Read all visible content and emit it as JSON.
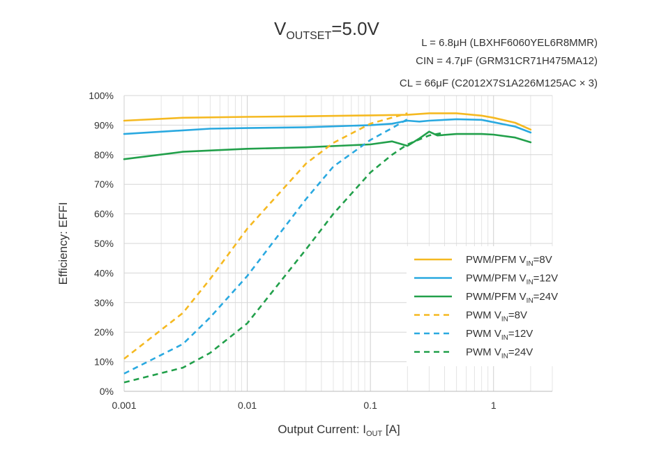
{
  "chart_data": {
    "type": "line",
    "title": {
      "prefix": "V",
      "sub": "OUTSET",
      "suffix": "=5.0V"
    },
    "conditions": [
      "L = 6.8μH (LBXHF6060YEL6R8MMR)",
      "CIN = 4.7μF (GRM31CR71H475MA12)",
      "CL = 66μF (C2012X7S1A226M125AC × 3)"
    ],
    "xlabel": {
      "main": "Output Current: I",
      "sub": "OUT",
      "tail": " [A]"
    },
    "ylabel": "Efficiency: EFFI",
    "xscale": "log",
    "xlim": [
      0.001,
      3
    ],
    "ylim": [
      0,
      100
    ],
    "x_ticks": [
      {
        "value": 0.001,
        "label": "0.001"
      },
      {
        "value": 0.01,
        "label": "0.01"
      },
      {
        "value": 0.1,
        "label": "0.1"
      },
      {
        "value": 1,
        "label": "1"
      }
    ],
    "y_ticks": [
      {
        "value": 0,
        "label": "0%"
      },
      {
        "value": 10,
        "label": "10%"
      },
      {
        "value": 20,
        "label": "20%"
      },
      {
        "value": 30,
        "label": "30%"
      },
      {
        "value": 40,
        "label": "40%"
      },
      {
        "value": 50,
        "label": "50%"
      },
      {
        "value": 60,
        "label": "60%"
      },
      {
        "value": 70,
        "label": "70%"
      },
      {
        "value": 80,
        "label": "80%"
      },
      {
        "value": 90,
        "label": "90%"
      },
      {
        "value": 100,
        "label": "100%"
      }
    ],
    "legend_position": "bottom-right",
    "series": [
      {
        "name": "PWM/PFM VIN=8V",
        "legend": {
          "pre": "PWM/PFM V",
          "sub": "IN",
          "post": "=8V"
        },
        "color": "#F5B921",
        "dash": "solid",
        "x": [
          0.001,
          0.003,
          0.01,
          0.03,
          0.1,
          0.2,
          0.3,
          0.5,
          0.8,
          1.0,
          1.5,
          2.0
        ],
        "y": [
          91.5,
          92.5,
          92.8,
          93.0,
          93.3,
          93.5,
          94.0,
          94.0,
          93.2,
          92.5,
          90.8,
          88.5
        ]
      },
      {
        "name": "PWM/PFM VIN=12V",
        "legend": {
          "pre": "PWM/PFM V",
          "sub": "IN",
          "post": "=12V"
        },
        "color": "#2AA9E0",
        "dash": "solid",
        "x": [
          0.001,
          0.005,
          0.01,
          0.03,
          0.1,
          0.15,
          0.2,
          0.25,
          0.3,
          0.5,
          0.8,
          1.0,
          1.5,
          2.0
        ],
        "y": [
          87.0,
          88.8,
          89.0,
          89.3,
          90.0,
          90.5,
          91.5,
          91.2,
          91.5,
          92.0,
          91.8,
          91.0,
          89.5,
          87.5
        ]
      },
      {
        "name": "PWM/PFM VIN=24V",
        "legend": {
          "pre": "PWM/PFM V",
          "sub": "IN",
          "post": "=24V"
        },
        "color": "#22A04B",
        "dash": "solid",
        "x": [
          0.001,
          0.003,
          0.01,
          0.03,
          0.1,
          0.15,
          0.2,
          0.25,
          0.3,
          0.35,
          0.5,
          0.8,
          1.0,
          1.5,
          2.0
        ],
        "y": [
          78.5,
          81.0,
          82.0,
          82.5,
          83.5,
          84.5,
          83.0,
          85.5,
          87.8,
          86.5,
          87.0,
          87.0,
          86.8,
          85.8,
          84.2
        ]
      },
      {
        "name": "PWM VIN=8V",
        "legend": {
          "pre": "PWM V",
          "sub": "IN",
          "post": "=8V"
        },
        "color": "#F5B921",
        "dash": "dashed",
        "x": [
          0.001,
          0.003,
          0.005,
          0.01,
          0.03,
          0.05,
          0.1,
          0.2
        ],
        "y": [
          11.0,
          26.5,
          38.0,
          55.0,
          77.0,
          84.0,
          90.5,
          94.0
        ]
      },
      {
        "name": "PWM VIN=12V",
        "legend": {
          "pre": "PWM V",
          "sub": "IN",
          "post": "=12V"
        },
        "color": "#2AA9E0",
        "dash": "dashed",
        "x": [
          0.001,
          0.003,
          0.005,
          0.01,
          0.03,
          0.05,
          0.1,
          0.15,
          0.2
        ],
        "y": [
          6.0,
          16.0,
          25.0,
          39.0,
          65.0,
          76.0,
          85.0,
          89.0,
          92.0
        ]
      },
      {
        "name": "PWM VIN=24V",
        "legend": {
          "pre": "PWM V",
          "sub": "IN",
          "post": "=24V"
        },
        "color": "#22A04B",
        "dash": "dashed",
        "x": [
          0.001,
          0.003,
          0.005,
          0.01,
          0.03,
          0.05,
          0.1,
          0.15,
          0.2,
          0.3,
          0.4
        ],
        "y": [
          3.0,
          8.0,
          13.0,
          23.0,
          48.0,
          60.0,
          74.0,
          80.0,
          83.5,
          86.5,
          87.5
        ]
      }
    ]
  }
}
